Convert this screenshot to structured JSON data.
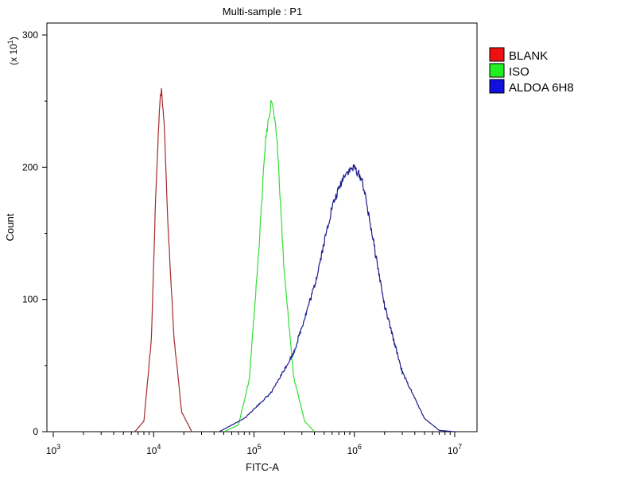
{
  "chart_data": {
    "type": "area",
    "title": "Multi-sample : P1",
    "xlabel": "FITC-A",
    "ylabel": "Count",
    "y_multiplier": "(x 10^1)",
    "y_multiplier_base": "(x 10",
    "y_multiplier_exp": "1",
    "y_multiplier_close": ")",
    "x_scale": "log",
    "xlim": [
      1000,
      10000000
    ],
    "ylim": [
      0,
      300
    ],
    "grid": false,
    "legend_position": "right",
    "x_ticks": [
      {
        "value": 1000,
        "base": "10",
        "exp": "3"
      },
      {
        "value": 10000,
        "base": "10",
        "exp": "4"
      },
      {
        "value": 100000,
        "base": "10",
        "exp": "5"
      },
      {
        "value": 1000000,
        "base": "10",
        "exp": "6"
      },
      {
        "value": 10000000,
        "base": "10",
        "exp": "7"
      }
    ],
    "y_ticks": [
      0,
      100,
      200,
      300
    ],
    "series": [
      {
        "name": "BLANK",
        "color": "#a52a2a",
        "points": [
          [
            6500,
            0
          ],
          [
            8000,
            8
          ],
          [
            9500,
            70
          ],
          [
            10500,
            180
          ],
          [
            11500,
            250
          ],
          [
            12000,
            258
          ],
          [
            12800,
            230
          ],
          [
            14000,
            150
          ],
          [
            16000,
            70
          ],
          [
            19000,
            15
          ],
          [
            24000,
            0
          ]
        ]
      },
      {
        "name": "ISO",
        "color": "#33dd33",
        "points": [
          [
            50000,
            0
          ],
          [
            70000,
            5
          ],
          [
            90000,
            40
          ],
          [
            110000,
            130
          ],
          [
            130000,
            220
          ],
          [
            150000,
            252
          ],
          [
            170000,
            220
          ],
          [
            200000,
            120
          ],
          [
            250000,
            40
          ],
          [
            320000,
            8
          ],
          [
            400000,
            0
          ]
        ]
      },
      {
        "name": "ALDOA 6H8",
        "color": "#1a1a8c",
        "points": [
          [
            45000,
            0
          ],
          [
            80000,
            10
          ],
          [
            150000,
            30
          ],
          [
            250000,
            60
          ],
          [
            400000,
            110
          ],
          [
            600000,
            170
          ],
          [
            800000,
            195
          ],
          [
            1000000,
            200
          ],
          [
            1200000,
            190
          ],
          [
            1500000,
            150
          ],
          [
            2000000,
            95
          ],
          [
            3000000,
            45
          ],
          [
            5000000,
            10
          ],
          [
            7000000,
            1
          ],
          [
            10000000,
            0
          ]
        ]
      }
    ]
  }
}
